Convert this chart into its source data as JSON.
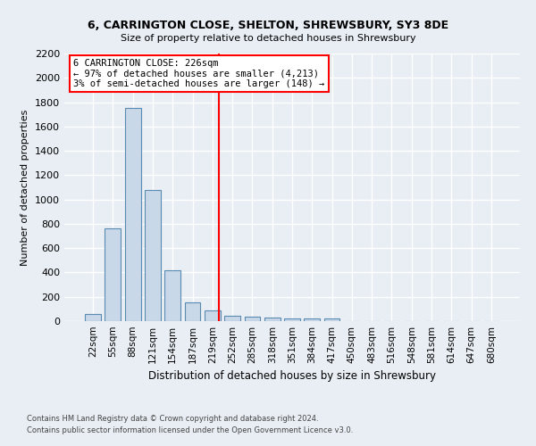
{
  "title": "6, CARRINGTON CLOSE, SHELTON, SHREWSBURY, SY3 8DE",
  "subtitle": "Size of property relative to detached houses in Shrewsbury",
  "xlabel": "Distribution of detached houses by size in Shrewsbury",
  "ylabel": "Number of detached properties",
  "bar_color": "#c8d8e8",
  "bar_edge_color": "#5a8ab0",
  "bg_color": "#e8eef4",
  "grid_color": "#ffffff",
  "categories": [
    "22sqm",
    "55sqm",
    "88sqm",
    "121sqm",
    "154sqm",
    "187sqm",
    "219sqm",
    "252sqm",
    "285sqm",
    "318sqm",
    "351sqm",
    "384sqm",
    "417sqm",
    "450sqm",
    "483sqm",
    "516sqm",
    "548sqm",
    "581sqm",
    "614sqm",
    "647sqm",
    "680sqm"
  ],
  "values": [
    60,
    760,
    1750,
    1075,
    420,
    155,
    85,
    45,
    35,
    30,
    25,
    20,
    20,
    0,
    0,
    0,
    0,
    0,
    0,
    0,
    0
  ],
  "ylim": [
    0,
    2200
  ],
  "yticks": [
    0,
    200,
    400,
    600,
    800,
    1000,
    1200,
    1400,
    1600,
    1800,
    2000,
    2200
  ],
  "annotation_text_line1": "6 CARRINGTON CLOSE: 226sqm",
  "annotation_text_line2": "← 97% of detached houses are smaller (4,213)",
  "annotation_text_line3": "3% of semi-detached houses are larger (148) →",
  "footer_line1": "Contains HM Land Registry data © Crown copyright and database right 2024.",
  "footer_line2": "Contains public sector information licensed under the Open Government Licence v3.0.",
  "bar_width": 0.8,
  "vline_x_index": 6.3
}
